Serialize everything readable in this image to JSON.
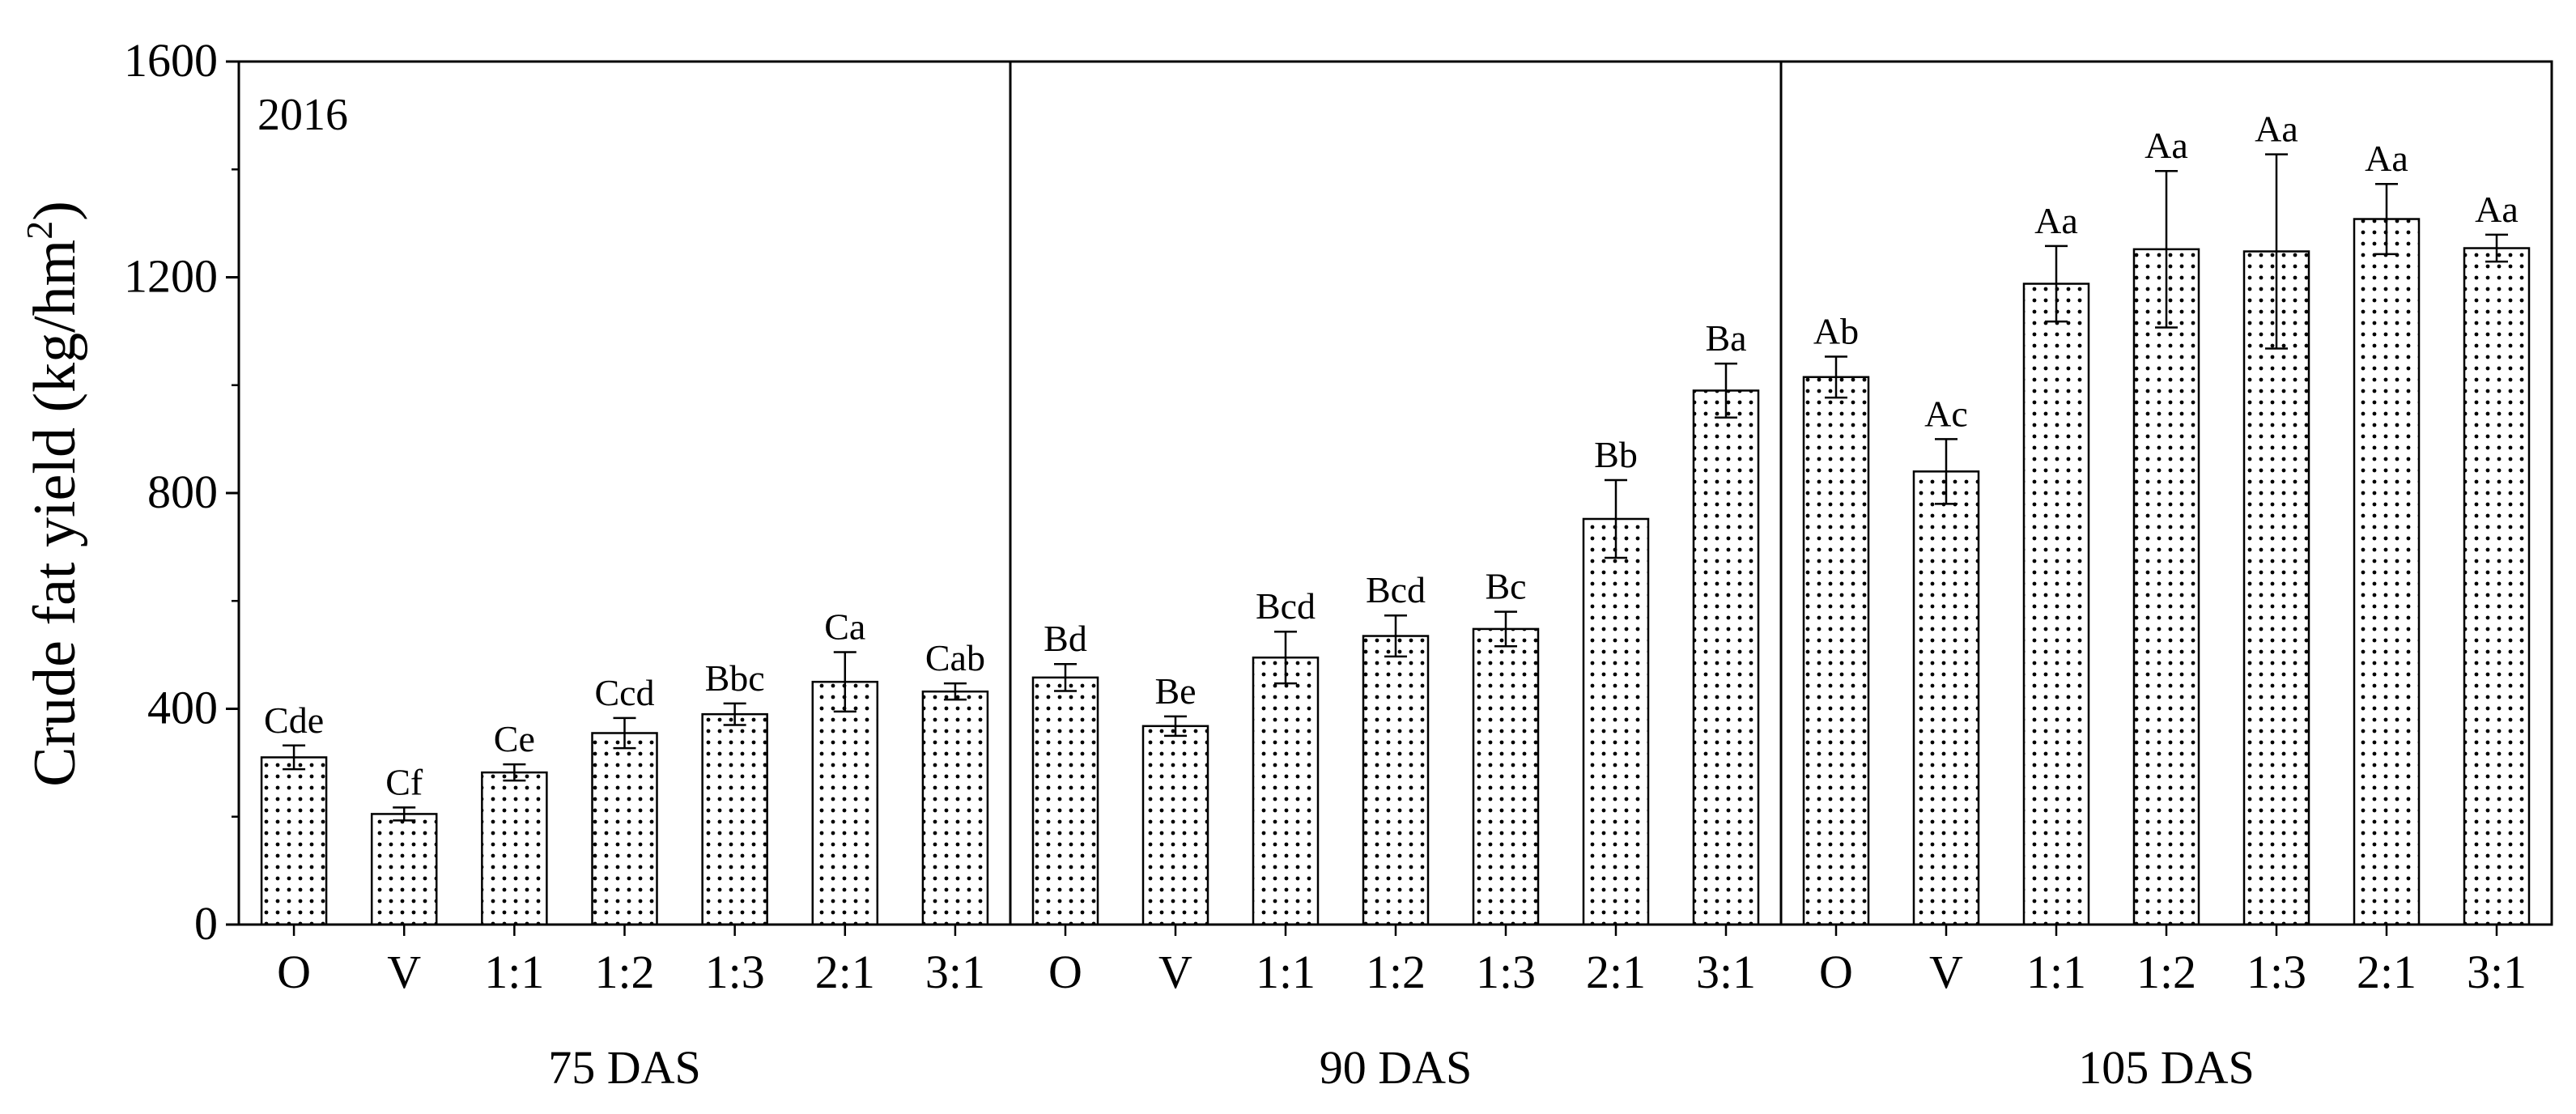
{
  "chart_data": {
    "type": "bar",
    "year_label": "2016",
    "ylabel": "Crude fat yield (kg/hm",
    "ylabel_superscript": "2",
    "ylabel_close": ")",
    "ylim": [
      0,
      1600
    ],
    "yticks": [
      "0",
      "400",
      "800",
      "1200",
      "1600"
    ],
    "categories": [
      "O",
      "V",
      "1:1",
      "1:2",
      "1:3",
      "2:1",
      "3:1"
    ],
    "groups": [
      {
        "name": "75 DAS",
        "values": [
          310,
          205,
          282,
          355,
          390,
          450,
          432
        ],
        "errors": [
          22,
          12,
          15,
          28,
          20,
          55,
          15
        ],
        "labels": [
          "Cde",
          "Cf",
          "Ce",
          "Ccd",
          "Bbc",
          "Ca",
          "Cab"
        ]
      },
      {
        "name": "90 DAS",
        "values": [
          458,
          368,
          495,
          535,
          548,
          752,
          990
        ],
        "errors": [
          25,
          18,
          48,
          38,
          32,
          72,
          50
        ],
        "labels": [
          "Bd",
          "Be",
          "Bcd",
          "Bcd",
          "Bc",
          "Bb",
          "Ba"
        ]
      },
      {
        "name": "105 DAS",
        "values": [
          1015,
          840,
          1188,
          1252,
          1248,
          1308,
          1254
        ],
        "errors": [
          38,
          60,
          70,
          145,
          180,
          65,
          25
        ],
        "labels": [
          "Ab",
          "Ac",
          "Aa",
          "Aa",
          "Aa",
          "Aa",
          "Aa"
        ]
      }
    ]
  }
}
